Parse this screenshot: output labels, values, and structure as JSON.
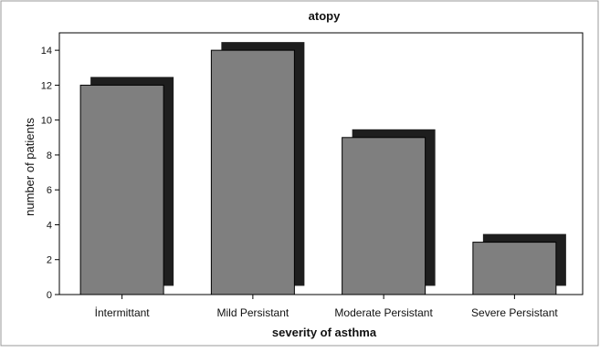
{
  "chart_data": {
    "type": "bar",
    "title": "atopy",
    "xlabel": "severity of asthma",
    "ylabel": "number of patients",
    "categories": [
      "İntermittant",
      "Mild Persistant",
      "Moderate Persistant",
      "Severe Persistant"
    ],
    "values": [
      12,
      14,
      9,
      3
    ],
    "ylim": [
      0,
      15
    ],
    "yticks": [
      0,
      2,
      4,
      6,
      8,
      10,
      12,
      14
    ],
    "grid": false,
    "bar_color": "#7f7f7f",
    "shadow_color": "#1e1e1e",
    "background_color": "#e8e8e8",
    "plot_background_color": "#ffffff"
  }
}
